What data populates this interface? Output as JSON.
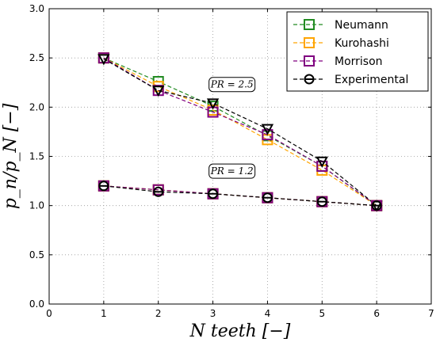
{
  "chart_data": {
    "type": "line",
    "xlabel": "N   teeth   [−]",
    "ylabel": "p_n/p_N   [−]",
    "xlim": [
      0,
      7
    ],
    "ylim": [
      0.0,
      3.0
    ],
    "xticks": [
      "0",
      "1",
      "2",
      "3",
      "4",
      "5",
      "6",
      "7"
    ],
    "yticks": [
      "0.0",
      "0.5",
      "1.0",
      "1.5",
      "2.0",
      "2.5",
      "3.0"
    ],
    "grid": true,
    "legend_position": "top-right",
    "annotations": [
      {
        "text": "PR = 2.5",
        "x": 3.35,
        "y": 2.23
      },
      {
        "text": "PR = 1.2",
        "x": 3.35,
        "y": 1.35
      }
    ],
    "x": [
      1,
      2,
      3,
      4,
      5,
      6
    ],
    "series": [
      {
        "name": "Neumann",
        "color": "#228B22",
        "marker": "square",
        "group": "PR=2.5",
        "values": [
          2.5,
          2.26,
          2.01,
          1.71,
          1.4,
          1.0
        ]
      },
      {
        "name": "Kurohashi",
        "color": "#FFA500",
        "marker": "square",
        "group": "PR=2.5",
        "values": [
          2.5,
          2.21,
          1.97,
          1.67,
          1.36,
          1.0
        ]
      },
      {
        "name": "Morrison",
        "color": "#800080",
        "marker": "square",
        "group": "PR=2.5",
        "values": [
          2.5,
          2.17,
          1.95,
          1.72,
          1.4,
          1.0
        ]
      },
      {
        "name": "Experimental",
        "color": "#000000",
        "marker": "down-triangle",
        "group": "PR=2.5",
        "values": [
          2.49,
          2.17,
          2.04,
          1.78,
          1.45,
          1.0
        ]
      },
      {
        "name": "Neumann",
        "color": "#228B22",
        "marker": "square",
        "group": "PR=1.2",
        "values": [
          1.2,
          1.16,
          1.12,
          1.08,
          1.04,
          1.0
        ]
      },
      {
        "name": "Kurohashi",
        "color": "#FFA500",
        "marker": "square",
        "group": "PR=1.2",
        "values": [
          1.2,
          1.16,
          1.12,
          1.08,
          1.04,
          1.0
        ]
      },
      {
        "name": "Morrison",
        "color": "#800080",
        "marker": "square",
        "group": "PR=1.2",
        "values": [
          1.2,
          1.16,
          1.12,
          1.08,
          1.04,
          1.0
        ]
      },
      {
        "name": "Experimental",
        "color": "#000000",
        "marker": "circle",
        "group": "PR=1.2",
        "values": [
          1.2,
          1.14,
          1.12,
          1.08,
          1.04,
          1.0
        ]
      }
    ],
    "legend": [
      {
        "name": "Neumann",
        "color": "#228B22",
        "marker": "square"
      },
      {
        "name": "Kurohashi",
        "color": "#FFA500",
        "marker": "square"
      },
      {
        "name": "Morrison",
        "color": "#800080",
        "marker": "square"
      },
      {
        "name": "Experimental",
        "color": "#000000",
        "marker": "circle"
      }
    ]
  }
}
